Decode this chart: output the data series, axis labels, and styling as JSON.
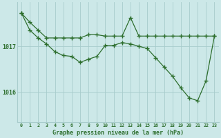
{
  "line1_x": [
    0,
    1,
    2,
    3,
    4,
    5,
    6,
    7,
    8,
    9,
    10,
    11,
    12,
    13,
    14,
    15,
    16,
    17,
    18,
    19,
    20,
    21,
    22,
    23
  ],
  "line1_y": [
    1017.72,
    1017.52,
    1017.35,
    1017.18,
    1017.18,
    1017.18,
    1017.18,
    1017.18,
    1017.25,
    1017.25,
    1017.22,
    1017.22,
    1017.22,
    1017.62,
    1017.22,
    1017.22,
    1017.22,
    1017.22,
    1017.22,
    1017.22,
    1017.22,
    1017.22,
    1017.22,
    1017.22
  ],
  "line2_x": [
    0,
    1,
    2,
    3,
    4,
    5,
    6,
    7,
    8,
    9,
    10,
    11,
    12,
    13,
    14,
    15,
    16,
    17,
    18,
    19,
    20,
    21,
    22,
    23
  ],
  "line2_y": [
    1017.72,
    1017.35,
    1017.18,
    1017.05,
    1016.88,
    1016.8,
    1016.78,
    1016.65,
    1016.72,
    1016.78,
    1017.02,
    1017.02,
    1017.08,
    1017.05,
    1017.0,
    1016.95,
    1016.75,
    1016.55,
    1016.35,
    1016.1,
    1015.88,
    1015.82,
    1016.25,
    1017.22
  ],
  "line_color": "#2d6e2d",
  "bg_color": "#cce8e8",
  "grid_color": "#a8cccc",
  "yticks": [
    1016,
    1017
  ],
  "xlabel_label": "Graphe pression niveau de la mer (hPa)",
  "xlim": [
    -0.5,
    23.5
  ],
  "ylim": [
    1015.35,
    1017.95
  ],
  "marker": "+",
  "markersize": 4.0,
  "linewidth": 0.9
}
